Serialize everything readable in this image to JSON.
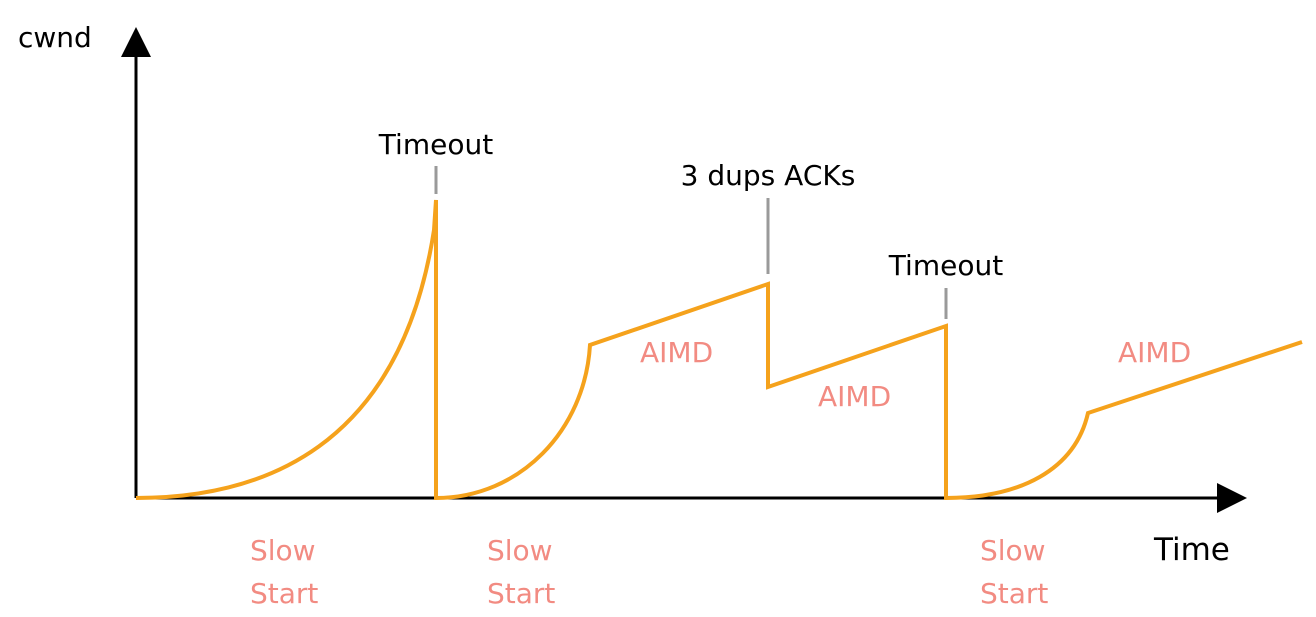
{
  "title": "",
  "axes": {
    "y_label": "cwnd",
    "x_label": "Time"
  },
  "events": [
    {
      "id": "timeout-1",
      "label": "Timeout"
    },
    {
      "id": "three-dup-acks",
      "label": "3 dups ACKs"
    },
    {
      "id": "timeout-2",
      "label": "Timeout"
    }
  ],
  "phases": {
    "aimd_1": "AIMD",
    "aimd_2": "AIMD",
    "aimd_3": "AIMD",
    "slow_start_1": [
      "Slow",
      "Start"
    ],
    "slow_start_2": [
      "Slow",
      "Start"
    ],
    "slow_start_3": [
      "Slow",
      "Start"
    ]
  },
  "colors": {
    "curve": "#f5a21c",
    "axis": "#000000",
    "marker": "#9a9a9a",
    "phase_text": "#f28b82",
    "event_text": "#000000"
  }
}
